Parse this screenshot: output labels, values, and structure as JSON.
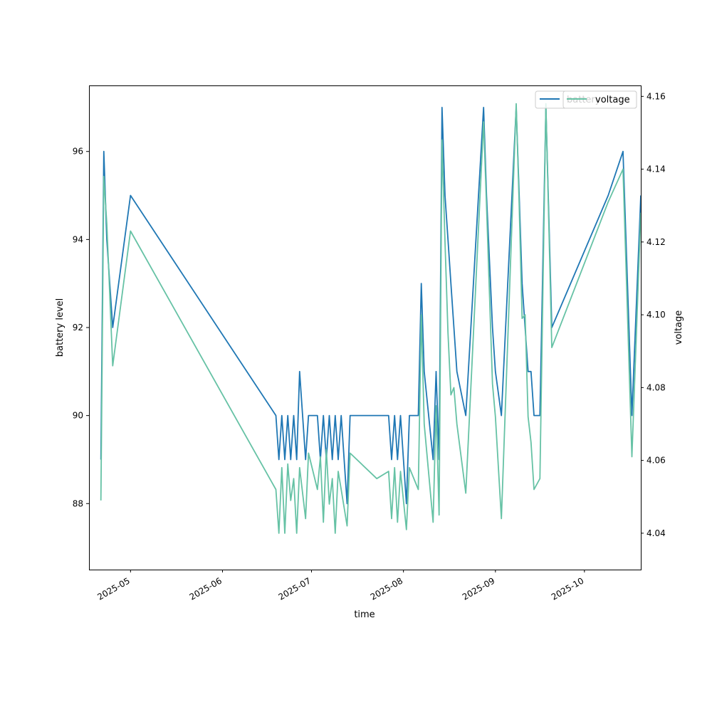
{
  "chart_data": {
    "type": "line",
    "xlabel": "time",
    "ylabel_left": "battery level",
    "ylabel_right": "voltage",
    "x_ticks": [
      "2025-05",
      "2025-06",
      "2025-07",
      "2025-08",
      "2025-09",
      "2025-10"
    ],
    "y_left_ticks": [
      88,
      90,
      92,
      94,
      96
    ],
    "y_right_ticks": [
      "4.04",
      "4.06",
      "4.08",
      "4.10",
      "4.12",
      "4.14",
      "4.16"
    ],
    "x_range": [
      "2025-04-17",
      "2025-10-20"
    ],
    "y_left_range": [
      86.5,
      97.5
    ],
    "y_right_range": [
      4.03,
      4.163
    ],
    "grid": false,
    "legend_placement": "top-right",
    "series": [
      {
        "name": "battery",
        "axis": "left",
        "color": "#1f77b4",
        "points": [
          [
            "2025-04-21",
            89
          ],
          [
            "2025-04-22",
            96
          ],
          [
            "2025-04-23",
            94
          ],
          [
            "2025-04-25",
            92
          ],
          [
            "2025-05-01",
            95
          ],
          [
            "2025-06-19",
            90
          ],
          [
            "2025-06-20",
            89
          ],
          [
            "2025-06-21",
            90
          ],
          [
            "2025-06-22",
            89
          ],
          [
            "2025-06-23",
            90
          ],
          [
            "2025-06-24",
            89
          ],
          [
            "2025-06-25",
            90
          ],
          [
            "2025-06-26",
            89
          ],
          [
            "2025-06-27",
            91
          ],
          [
            "2025-06-29",
            89
          ],
          [
            "2025-06-30",
            90
          ],
          [
            "2025-07-03",
            90
          ],
          [
            "2025-07-04",
            89
          ],
          [
            "2025-07-05",
            90
          ],
          [
            "2025-07-06",
            89
          ],
          [
            "2025-07-07",
            90
          ],
          [
            "2025-07-08",
            89
          ],
          [
            "2025-07-09",
            90
          ],
          [
            "2025-07-10",
            89
          ],
          [
            "2025-07-11",
            90
          ],
          [
            "2025-07-13",
            88
          ],
          [
            "2025-07-14",
            90
          ],
          [
            "2025-07-27",
            90
          ],
          [
            "2025-07-28",
            89
          ],
          [
            "2025-07-29",
            90
          ],
          [
            "2025-07-30",
            89
          ],
          [
            "2025-07-31",
            90
          ],
          [
            "2025-08-02",
            88
          ],
          [
            "2025-08-03",
            90
          ],
          [
            "2025-08-06",
            90
          ],
          [
            "2025-08-07",
            93
          ],
          [
            "2025-08-08",
            91
          ],
          [
            "2025-08-11",
            89
          ],
          [
            "2025-08-12",
            91
          ],
          [
            "2025-08-13",
            89
          ],
          [
            "2025-08-14",
            97
          ],
          [
            "2025-08-15",
            95
          ],
          [
            "2025-08-16",
            94
          ],
          [
            "2025-08-17",
            93
          ],
          [
            "2025-08-18",
            92
          ],
          [
            "2025-08-19",
            91
          ],
          [
            "2025-08-22",
            90
          ],
          [
            "2025-08-28",
            97
          ],
          [
            "2025-08-29",
            95
          ],
          [
            "2025-08-31",
            92
          ],
          [
            "2025-09-01",
            91
          ],
          [
            "2025-09-03",
            90
          ],
          [
            "2025-09-08",
            97
          ],
          [
            "2025-09-09",
            95
          ],
          [
            "2025-09-10",
            93
          ],
          [
            "2025-09-11",
            92
          ],
          [
            "2025-09-12",
            91
          ],
          [
            "2025-09-13",
            91
          ],
          [
            "2025-09-14",
            90
          ],
          [
            "2025-09-16",
            90
          ],
          [
            "2025-09-18",
            97
          ],
          [
            "2025-09-20",
            92
          ],
          [
            "2025-10-09",
            95
          ],
          [
            "2025-10-14",
            96
          ],
          [
            "2025-10-17",
            90
          ],
          [
            "2025-10-20",
            95
          ]
        ]
      },
      {
        "name": "voltage",
        "axis": "right",
        "color": "#66c2a5",
        "points": [
          [
            "2025-04-21",
            4.049
          ],
          [
            "2025-04-22",
            4.138
          ],
          [
            "2025-04-23",
            4.125
          ],
          [
            "2025-04-25",
            4.086
          ],
          [
            "2025-05-01",
            4.123
          ],
          [
            "2025-06-19",
            4.052
          ],
          [
            "2025-06-20",
            4.04
          ],
          [
            "2025-06-21",
            4.058
          ],
          [
            "2025-06-22",
            4.04
          ],
          [
            "2025-06-23",
            4.059
          ],
          [
            "2025-06-24",
            4.049
          ],
          [
            "2025-06-25",
            4.055
          ],
          [
            "2025-06-26",
            4.04
          ],
          [
            "2025-06-27",
            4.058
          ],
          [
            "2025-06-29",
            4.044
          ],
          [
            "2025-06-30",
            4.062
          ],
          [
            "2025-07-03",
            4.052
          ],
          [
            "2025-07-04",
            4.061
          ],
          [
            "2025-07-05",
            4.043
          ],
          [
            "2025-07-06",
            4.063
          ],
          [
            "2025-07-07",
            4.048
          ],
          [
            "2025-07-08",
            4.055
          ],
          [
            "2025-07-09",
            4.04
          ],
          [
            "2025-07-10",
            4.057
          ],
          [
            "2025-07-11",
            4.052
          ],
          [
            "2025-07-13",
            4.042
          ],
          [
            "2025-07-14",
            4.062
          ],
          [
            "2025-07-23",
            4.055
          ],
          [
            "2025-07-27",
            4.057
          ],
          [
            "2025-07-28",
            4.044
          ],
          [
            "2025-07-29",
            4.058
          ],
          [
            "2025-07-30",
            4.043
          ],
          [
            "2025-07-31",
            4.057
          ],
          [
            "2025-08-02",
            4.041
          ],
          [
            "2025-08-03",
            4.058
          ],
          [
            "2025-08-06",
            4.052
          ],
          [
            "2025-08-07",
            4.1
          ],
          [
            "2025-08-08",
            4.07
          ],
          [
            "2025-08-11",
            4.043
          ],
          [
            "2025-08-12",
            4.075
          ],
          [
            "2025-08-13",
            4.045
          ],
          [
            "2025-08-14",
            4.148
          ],
          [
            "2025-08-15",
            4.12
          ],
          [
            "2025-08-16",
            4.095
          ],
          [
            "2025-08-17",
            4.078
          ],
          [
            "2025-08-18",
            4.08
          ],
          [
            "2025-08-19",
            4.07
          ],
          [
            "2025-08-22",
            4.051
          ],
          [
            "2025-08-28",
            4.153
          ],
          [
            "2025-08-29",
            4.13
          ],
          [
            "2025-08-31",
            4.081
          ],
          [
            "2025-09-01",
            4.072
          ],
          [
            "2025-09-03",
            4.044
          ],
          [
            "2025-09-08",
            4.158
          ],
          [
            "2025-09-09",
            4.13
          ],
          [
            "2025-09-10",
            4.099
          ],
          [
            "2025-09-11",
            4.1
          ],
          [
            "2025-09-12",
            4.072
          ],
          [
            "2025-09-13",
            4.065
          ],
          [
            "2025-09-14",
            4.052
          ],
          [
            "2025-09-16",
            4.055
          ],
          [
            "2025-09-18",
            4.158
          ],
          [
            "2025-09-20",
            4.091
          ],
          [
            "2025-10-09",
            4.131
          ],
          [
            "2025-10-14",
            4.14
          ],
          [
            "2025-10-17",
            4.061
          ],
          [
            "2025-10-20",
            4.128
          ]
        ]
      }
    ]
  }
}
